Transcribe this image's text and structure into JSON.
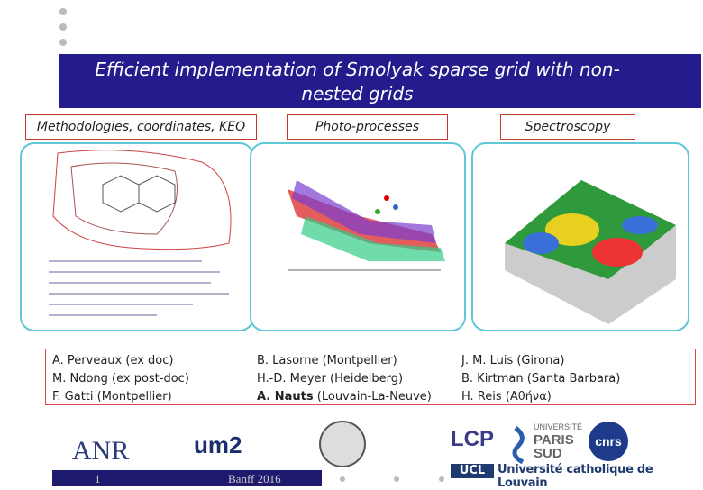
{
  "header": {
    "title": "Efficient implementation of Smolyak sparse grid with non-nested grids"
  },
  "sections": [
    {
      "header": "Methodologies, coordinates, KEO",
      "people": [
        {
          "text": "A. Perveaux (ex doc)"
        },
        {
          "text": "M. Ndong (ex post-doc)"
        },
        {
          "text": "F. Gatti (Montpellier)"
        }
      ]
    },
    {
      "header": "Photo-processes",
      "people": [
        {
          "text": "B. Lasorne (Montpellier)"
        },
        {
          "text": "H.-D. Meyer (Heidelberg)"
        },
        {
          "bold": "A. Nauts",
          "text": " (Louvain-La-Neuve)"
        }
      ]
    },
    {
      "header": "Spectroscopy",
      "people": [
        {
          "text": "J. M. Luis (Girona)"
        },
        {
          "text": "B. Kirtman (Santa Barbara)"
        },
        {
          "text": "H. Reis (Αθήνα)"
        }
      ]
    }
  ],
  "logos": {
    "anr": "ANR",
    "um2": "um2",
    "lcp": "LCP",
    "paris_sud": [
      "UNIVERSITÉ",
      "PARIS",
      "SUD"
    ],
    "cnrs": "cnrs",
    "ucl": "UCL",
    "louvain": "Université catholique de Louvain"
  },
  "footer": {
    "page": "1",
    "event": "Banff 2016"
  }
}
